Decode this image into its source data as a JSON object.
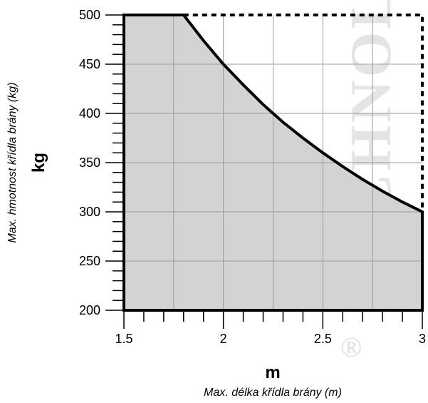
{
  "chart_data": {
    "type": "area",
    "xlim": [
      1.5,
      3
    ],
    "ylim": [
      200,
      500
    ],
    "x_ticks": [
      1.5,
      2,
      2.5,
      3
    ],
    "x_tick_labels": [
      "1.5",
      "2",
      "2.5",
      "3"
    ],
    "y_ticks": [
      200,
      250,
      300,
      350,
      400,
      450,
      500
    ],
    "y_tick_labels": [
      "200",
      "250",
      "300",
      "350",
      "400",
      "450",
      "500"
    ],
    "x_unit": "m",
    "xlabel": "Max. délka křídla brány (m)",
    "y_unit": "kg",
    "ylabel": "Max. hmotnost křídla brány (kg)",
    "grid": true,
    "series": [
      {
        "x": [
          1.5,
          1.8,
          1.9,
          2.0,
          2.1,
          2.2,
          2.3,
          2.4,
          2.5,
          2.6,
          2.7,
          2.8,
          2.9,
          3.0
        ],
        "values": [
          500,
          500,
          474,
          450,
          429,
          409,
          391,
          375,
          360,
          346,
          333,
          321,
          310,
          300
        ],
        "fill": "#d3d3d3",
        "line_color": "#000000"
      }
    ],
    "envelope_dashed": [
      [
        1.8,
        500
      ],
      [
        3.0,
        500
      ],
      [
        3.0,
        300
      ]
    ]
  },
  "watermark": {
    "text": "TECHNOL",
    "reg": "®"
  }
}
